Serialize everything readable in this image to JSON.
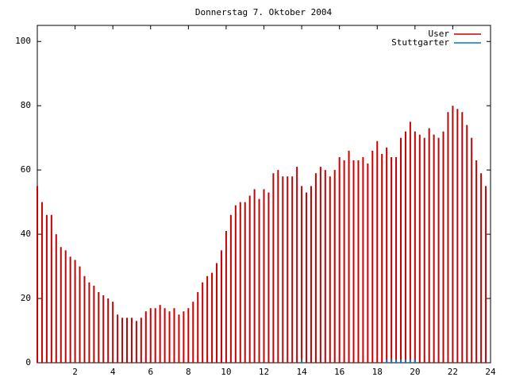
{
  "chart_data": {
    "type": "impulse",
    "title": "Donnerstag 7. Oktober 2004",
    "xlim": [
      0,
      24
    ],
    "xticks": [
      2,
      4,
      6,
      8,
      10,
      12,
      14,
      16,
      18,
      20,
      22,
      24
    ],
    "ylim": [
      0,
      105
    ],
    "yticks": [
      0,
      20,
      40,
      60,
      80,
      100
    ],
    "legend": "top-right",
    "x": [
      0,
      0.25,
      0.5,
      0.75,
      1,
      1.25,
      1.5,
      1.75,
      2,
      2.25,
      2.5,
      2.75,
      3,
      3.25,
      3.5,
      3.75,
      4,
      4.25,
      4.5,
      4.75,
      5,
      5.25,
      5.5,
      5.75,
      6,
      6.25,
      6.5,
      6.75,
      7,
      7.25,
      7.5,
      7.75,
      8,
      8.25,
      8.5,
      8.75,
      9,
      9.25,
      9.5,
      9.75,
      10,
      10.25,
      10.5,
      10.75,
      11,
      11.25,
      11.5,
      11.75,
      12,
      12.25,
      12.5,
      12.75,
      13,
      13.25,
      13.5,
      13.75,
      14,
      14.25,
      14.5,
      14.75,
      15,
      15.25,
      15.5,
      15.75,
      16,
      16.25,
      16.5,
      16.75,
      17,
      17.25,
      17.5,
      17.75,
      18,
      18.25,
      18.5,
      18.75,
      19,
      19.25,
      19.5,
      19.75,
      20,
      20.25,
      20.5,
      20.75,
      21,
      21.25,
      21.5,
      21.75,
      22,
      22.25,
      22.5,
      22.75,
      23,
      23.25,
      23.5,
      23.75
    ],
    "series": [
      {
        "name": "User",
        "color": "#cc0000",
        "values": [
          55,
          50,
          46,
          46,
          40,
          36,
          35,
          33,
          32,
          30,
          27,
          25,
          24,
          22,
          21,
          20,
          19,
          15,
          14,
          14,
          14,
          13,
          14,
          16,
          17,
          17,
          18,
          17,
          16,
          17,
          15,
          16,
          17,
          19,
          22,
          25,
          27,
          28,
          31,
          35,
          41,
          46,
          49,
          50,
          50,
          52,
          54,
          51,
          54,
          53,
          59,
          60,
          58,
          58,
          58,
          61,
          55,
          53,
          55,
          59,
          61,
          60,
          58,
          60,
          64,
          63,
          66,
          63,
          63,
          64,
          62,
          66,
          69,
          65,
          67,
          64,
          64,
          70,
          72,
          75,
          72,
          71,
          70,
          73,
          71,
          70,
          72,
          78,
          80,
          79,
          78,
          74,
          70,
          63,
          59,
          55
        ]
      },
      {
        "name": "Stuttgarter",
        "color": "#0077cc",
        "values": [
          null,
          null,
          null,
          null,
          null,
          null,
          null,
          null,
          null,
          null,
          null,
          null,
          null,
          null,
          null,
          null,
          null,
          null,
          null,
          null,
          null,
          null,
          null,
          null,
          null,
          null,
          null,
          null,
          null,
          null,
          null,
          null,
          null,
          null,
          null,
          null,
          null,
          null,
          null,
          null,
          null,
          null,
          null,
          null,
          null,
          null,
          null,
          null,
          null,
          null,
          null,
          null,
          null,
          null,
          null,
          null,
          1,
          null,
          null,
          null,
          null,
          null,
          null,
          null,
          null,
          null,
          null,
          null,
          null,
          null,
          null,
          null,
          null,
          null,
          1,
          1,
          1,
          1,
          1,
          1,
          1,
          null,
          null,
          null,
          null,
          null,
          null,
          null,
          null,
          null,
          null,
          null,
          null,
          null,
          null,
          null
        ]
      }
    ]
  }
}
